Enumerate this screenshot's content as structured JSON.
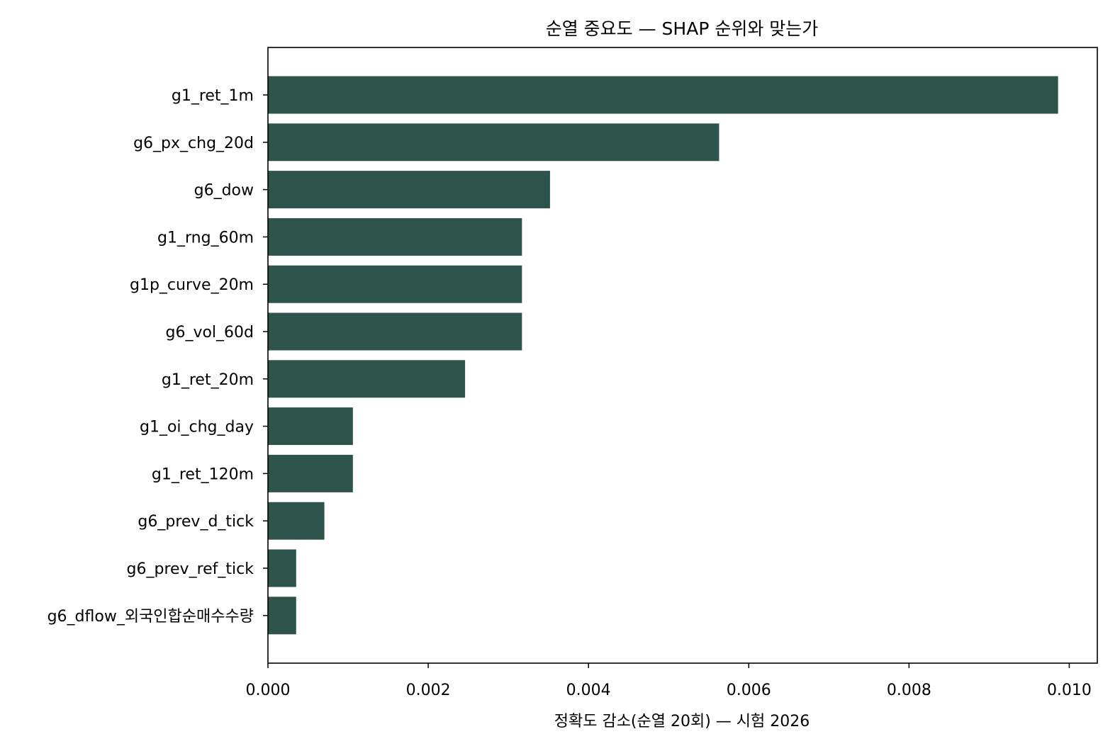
{
  "chart_data": {
    "type": "bar",
    "orientation": "horizontal",
    "title": "순열 중요도 — SHAP 순위와 맞는가",
    "xlabel": "정확도 감소(순열 20회) — 시험 2026",
    "ylabel": "",
    "xlim": [
      0,
      0.01035
    ],
    "xticks": [
      "0.000",
      "0.002",
      "0.004",
      "0.006",
      "0.008",
      "0.010"
    ],
    "xtick_values": [
      0,
      0.002,
      0.004,
      0.006,
      0.008,
      0.01
    ],
    "grid": false,
    "bar_color": "#2e534a",
    "categories": [
      "g1_ret_1m",
      "g6_px_chg_20d",
      "g6_dow",
      "g1_rng_60m",
      "g1p_curve_20m",
      "g6_vol_60d",
      "g1_ret_20m",
      "g1_oi_chg_day",
      "g1_ret_120m",
      "g6_prev_d_tick",
      "g6_prev_ref_tick",
      "g6_dflow_외국인합순매수수량"
    ],
    "values": [
      0.00986,
      0.00563,
      0.00352,
      0.00317,
      0.00317,
      0.00317,
      0.00246,
      0.00106,
      0.00106,
      0.000704,
      0.000352,
      0.000352
    ]
  }
}
